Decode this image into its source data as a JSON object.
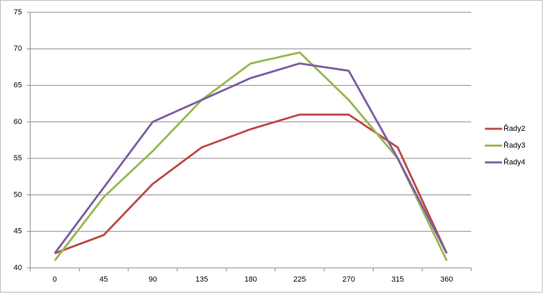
{
  "chart_data": {
    "type": "line",
    "categories": [
      "0",
      "45",
      "90",
      "135",
      "180",
      "225",
      "270",
      "315",
      "360"
    ],
    "series": [
      {
        "name": "Řady2",
        "color": "#be4b48",
        "values": [
          42,
          44.5,
          51.5,
          56.5,
          59,
          61,
          61,
          56.5,
          42
        ]
      },
      {
        "name": "Řady3",
        "color": "#98b954",
        "values": [
          41,
          49.7,
          56,
          63,
          68,
          69.5,
          63,
          55,
          41
        ]
      },
      {
        "name": "Řady4",
        "color": "#7d5fa0",
        "values": [
          42,
          51,
          60,
          63,
          66,
          68,
          67,
          55,
          42
        ]
      }
    ],
    "ylim": [
      40,
      75
    ],
    "yticks": [
      40,
      45,
      50,
      55,
      60,
      65,
      70,
      75
    ],
    "grid": true,
    "legend": "right"
  }
}
